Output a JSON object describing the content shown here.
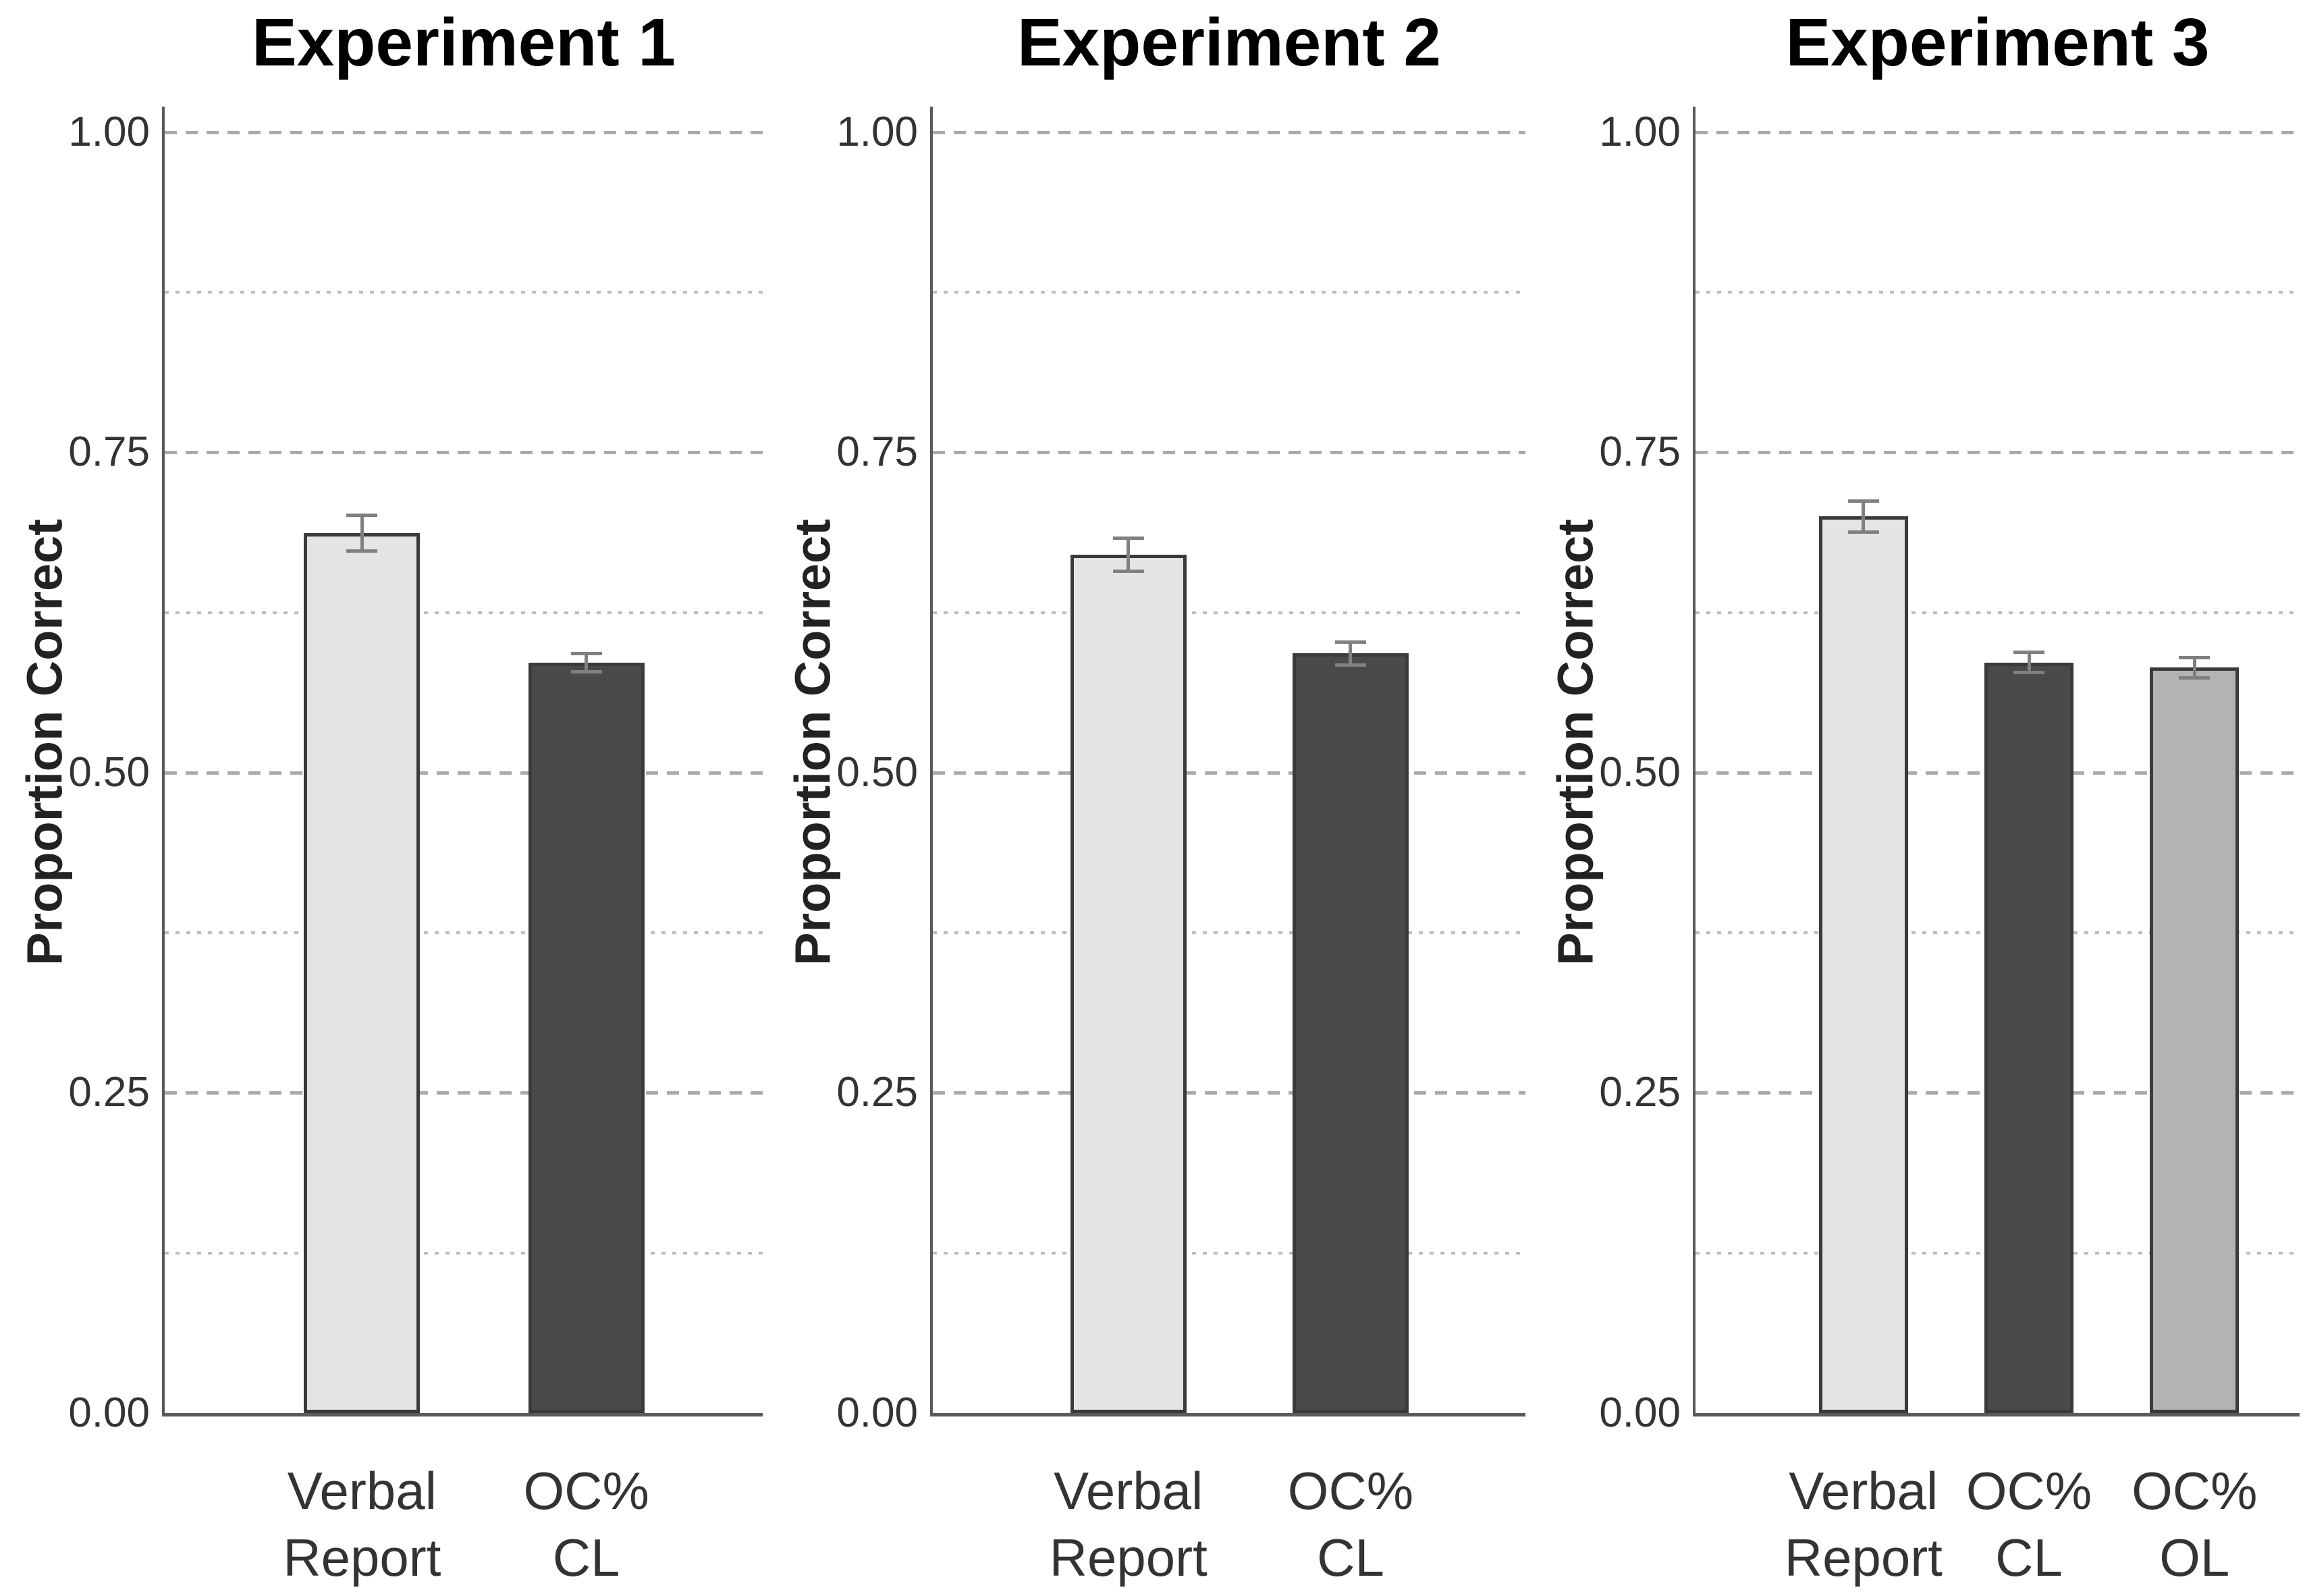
{
  "figure": {
    "ylabel": "Proportion Correct",
    "background": "#ffffff",
    "colors": {
      "axis": "#5a5a5a",
      "grid_major": "#aaaaaa",
      "grid_minor": "#bcbcbc",
      "tick_text": "#333333",
      "title_text": "#000000",
      "bar_border": "#3a3a3a",
      "error_bar": "#808080",
      "fill_light": "#e4e4e4",
      "fill_dark": "#4a4a4a",
      "fill_medium": "#b3b3b3"
    }
  },
  "chart_data": [
    {
      "type": "bar",
      "title": "Experiment 1",
      "ylabel": "Proportion Correct",
      "categories": [
        [
          "Verbal",
          "Report"
        ],
        [
          "OC%",
          "CL"
        ]
      ],
      "values": [
        0.687,
        0.586
      ],
      "errors": [
        0.014,
        0.007
      ],
      "bar_color_keys": [
        "fill_light",
        "fill_dark"
      ],
      "ylim": [
        0,
        1.02
      ],
      "ytick_values": [
        0,
        0.25,
        0.5,
        0.75,
        1.0
      ],
      "ytick_labels": [
        "0.00",
        "0.25",
        "0.50",
        "0.75",
        "1.00"
      ],
      "minor_gridlines": [
        0.125,
        0.375,
        0.625,
        0.875
      ],
      "grid": "dashed-major-dotted-minor",
      "legend": "none"
    },
    {
      "type": "bar",
      "title": "Experiment 2",
      "ylabel": "Proportion Correct",
      "categories": [
        [
          "Verbal",
          "Report"
        ],
        [
          "OC%",
          "CL"
        ]
      ],
      "values": [
        0.67,
        0.593
      ],
      "errors": [
        0.013,
        0.009
      ],
      "bar_color_keys": [
        "fill_light",
        "fill_dark"
      ],
      "ylim": [
        0,
        1.02
      ],
      "ytick_values": [
        0,
        0.25,
        0.5,
        0.75,
        1.0
      ],
      "ytick_labels": [
        "0.00",
        "0.25",
        "0.50",
        "0.75",
        "1.00"
      ],
      "minor_gridlines": [
        0.125,
        0.375,
        0.625,
        0.875
      ],
      "grid": "dashed-major-dotted-minor",
      "legend": "none"
    },
    {
      "type": "bar",
      "title": "Experiment 3",
      "ylabel": "Proportion Correct",
      "categories": [
        [
          "Verbal",
          "Report"
        ],
        [
          "OC%",
          "CL"
        ],
        [
          "OC%",
          "OL"
        ]
      ],
      "values": [
        0.7,
        0.586,
        0.582
      ],
      "errors": [
        0.012,
        0.008,
        0.008
      ],
      "bar_color_keys": [
        "fill_light",
        "fill_dark",
        "fill_medium"
      ],
      "ylim": [
        0,
        1.02
      ],
      "ytick_values": [
        0,
        0.25,
        0.5,
        0.75,
        1.0
      ],
      "ytick_labels": [
        "0.00",
        "0.25",
        "0.50",
        "0.75",
        "1.00"
      ],
      "minor_gridlines": [
        0.125,
        0.375,
        0.625,
        0.875
      ],
      "grid": "dashed-major-dotted-minor",
      "legend": "none"
    }
  ]
}
